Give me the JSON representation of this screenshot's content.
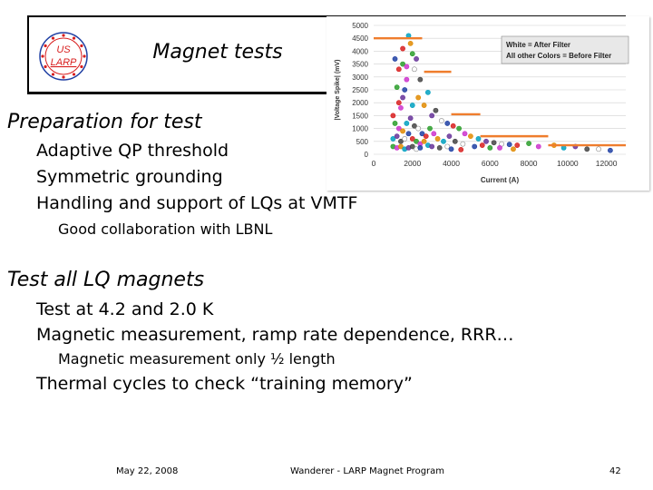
{
  "slide": {
    "title": "Magnet tests",
    "logo_text": [
      "US",
      "LARP"
    ],
    "bullets": [
      {
        "level": 1,
        "text": "Preparation for test"
      },
      {
        "level": 2,
        "text": "Adaptive QP threshold"
      },
      {
        "level": 2,
        "text": "Symmetric grounding"
      },
      {
        "level": 2,
        "text": "Handling and support of LQs at VMTF"
      },
      {
        "level": 3,
        "text": "Good collaboration with LBNL"
      },
      {
        "level": 1,
        "text": "Test all LQ magnets"
      },
      {
        "level": 2,
        "text": "Test at 4.2 and 2.0 K"
      },
      {
        "level": 2,
        "text": "Magnetic measurement, ramp rate dependence, RRR…"
      },
      {
        "level": 3,
        "text": "Magnetic measurement only ½ length"
      },
      {
        "level": 2,
        "text": "Thermal cycles to check “training memory”"
      }
    ],
    "footer": {
      "date": "May 22, 2008",
      "center": "Wanderer - LARP Magnet Program",
      "page": "42"
    }
  },
  "colors": {
    "logo_red": "#d81e1e",
    "logo_blue": "#1f3fa3",
    "threshold": "#ef7d2d",
    "grid": "#d0d0d0"
  },
  "chart_data": {
    "type": "scatter",
    "xlabel": "Current (A)",
    "ylabel": "|Voltage Spike| (mV)",
    "xlim": [
      0,
      13000
    ],
    "ylim": [
      0,
      5000
    ],
    "xticks": [
      0,
      2000,
      4000,
      6000,
      8000,
      10000,
      12000
    ],
    "yticks": [
      0,
      500,
      1000,
      1500,
      2000,
      2500,
      3000,
      3500,
      4000,
      4500,
      5000
    ],
    "grid": "horizontal",
    "legend": [
      "White = After Filter",
      "All other Colors = Before Filter"
    ],
    "legend_position": "top-right",
    "threshold_steps": [
      {
        "x": [
          0,
          2500
        ],
        "y": 4500
      },
      {
        "x": [
          2600,
          4000
        ],
        "y": 3200
      },
      {
        "x": [
          4000,
          5500
        ],
        "y": 1550
      },
      {
        "x": [
          5500,
          9000
        ],
        "y": 700
      },
      {
        "x": [
          9000,
          13000
        ],
        "y": 350
      }
    ],
    "points": [
      [
        1100,
        3700
      ],
      [
        1300,
        3300
      ],
      [
        1500,
        3500
      ],
      [
        1700,
        2900
      ],
      [
        1900,
        4300
      ],
      [
        1800,
        4600
      ],
      [
        2200,
        3700
      ],
      [
        2400,
        2900
      ],
      [
        2100,
        3300
      ],
      [
        1600,
        2500
      ],
      [
        1300,
        2000
      ],
      [
        1200,
        2600
      ],
      [
        1400,
        1800
      ],
      [
        2600,
        1900
      ],
      [
        2800,
        2400
      ],
      [
        3000,
        1500
      ],
      [
        3200,
        1700
      ],
      [
        3500,
        1300
      ],
      [
        3800,
        1200
      ],
      [
        4100,
        1100
      ],
      [
        4400,
        1000
      ],
      [
        4700,
        800
      ],
      [
        5000,
        700
      ],
      [
        5400,
        600
      ],
      [
        5800,
        500
      ],
      [
        6200,
        450
      ],
      [
        6600,
        400
      ],
      [
        7000,
        380
      ],
      [
        7400,
        350
      ],
      [
        8000,
        420
      ],
      [
        8500,
        300
      ],
      [
        9300,
        350
      ],
      [
        9800,
        250
      ],
      [
        10400,
        300
      ],
      [
        11000,
        200
      ],
      [
        11600,
        200
      ],
      [
        12200,
        150
      ],
      [
        1000,
        1500
      ],
      [
        1100,
        1200
      ],
      [
        1300,
        1000
      ],
      [
        1500,
        900
      ],
      [
        1700,
        1200
      ],
      [
        1900,
        1400
      ],
      [
        2100,
        1100
      ],
      [
        2300,
        1000
      ],
      [
        2500,
        800
      ],
      [
        2700,
        700
      ],
      [
        2900,
        1000
      ],
      [
        3100,
        800
      ],
      [
        3300,
        600
      ],
      [
        3600,
        500
      ],
      [
        3900,
        700
      ],
      [
        4200,
        500
      ],
      [
        4600,
        400
      ],
      [
        5200,
        300
      ],
      [
        5600,
        350
      ],
      [
        6000,
        250
      ],
      [
        6500,
        250
      ],
      [
        7200,
        200
      ],
      [
        1000,
        600
      ],
      [
        1200,
        700
      ],
      [
        1400,
        500
      ],
      [
        1600,
        600
      ],
      [
        1800,
        800
      ],
      [
        2000,
        600
      ],
      [
        2200,
        500
      ],
      [
        2400,
        400
      ],
      [
        2600,
        500
      ],
      [
        2800,
        350
      ],
      [
        3000,
        300
      ],
      [
        3400,
        250
      ],
      [
        3800,
        300
      ],
      [
        4000,
        200
      ],
      [
        4500,
        180
      ],
      [
        1000,
        300
      ],
      [
        1200,
        250
      ],
      [
        1400,
        300
      ],
      [
        1600,
        200
      ],
      [
        1800,
        250
      ],
      [
        2000,
        300
      ],
      [
        2200,
        200
      ],
      [
        2400,
        250
      ],
      [
        1500,
        4100
      ],
      [
        2000,
        3900
      ],
      [
        1700,
        3400
      ],
      [
        2300,
        2200
      ],
      [
        2000,
        1900
      ],
      [
        1500,
        2200
      ]
    ]
  }
}
